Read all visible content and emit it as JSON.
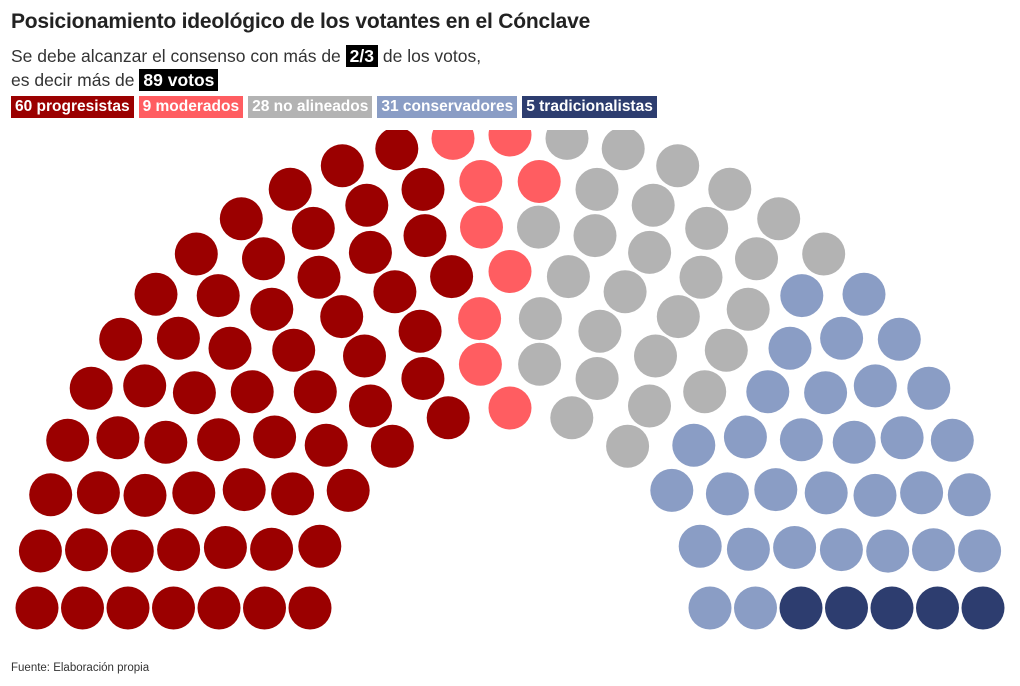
{
  "title": "Posicionamiento ideológico de los votantes en el Cónclave",
  "subtitle": {
    "line1_before": "Se debe alcanzar el consenso con más de",
    "line1_highlight": "2/3",
    "line1_after": "de los votos,",
    "line2_before": "es decir más de",
    "line2_highlight": "89 votos"
  },
  "source": "Fuente: Elaboración propia",
  "chart_data": {
    "type": "parliament",
    "total_seats": 133,
    "threshold_fraction": "2/3",
    "threshold_votes": 89,
    "series": [
      {
        "label": "60 progresistas",
        "name": "progresistas",
        "value": 60,
        "color": "#9b0000"
      },
      {
        "label": "9 moderados",
        "name": "moderados",
        "value": 9,
        "color": "#ff5d61"
      },
      {
        "label": "28 no alineados",
        "name": "no alineados",
        "value": 28,
        "color": "#b3b3b3"
      },
      {
        "label": "31 conservadores",
        "name": "conservadores",
        "value": 31,
        "color": "#8a9dc5"
      },
      {
        "label": "5 tradicionalistas",
        "name": "tradicionalistas",
        "value": 5,
        "color": "#2d3d6f"
      }
    ]
  }
}
